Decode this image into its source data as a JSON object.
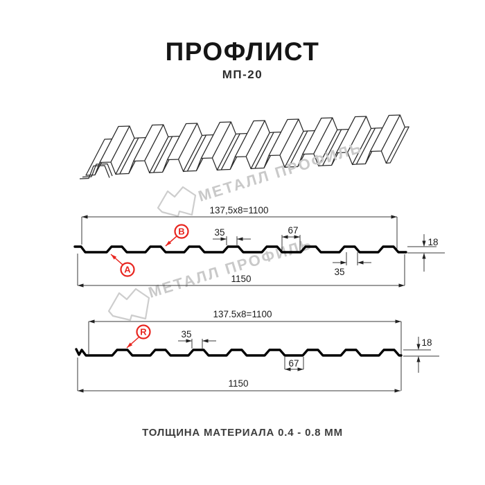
{
  "header": {
    "title": "ПРОФЛИСТ",
    "subtitle": "МП-20"
  },
  "watermark": {
    "brand": "МЕТАЛЛ ПРОФИЛЬ"
  },
  "sections": {
    "profile_a": {
      "width_formula": "137,5x8=1100",
      "crest_width": "35",
      "flat_width": "67",
      "height": "18",
      "crest_width_bottom": "35",
      "total_width": "1150",
      "marker_a": "A",
      "marker_b": "B"
    },
    "profile_r": {
      "width_formula": "137.5x8=1100",
      "crest_width": "35",
      "flat_width": "67",
      "height": "18",
      "total_width": "1150",
      "marker_r": "R"
    }
  },
  "footer": {
    "note": "ТОЛЩИНА МАТЕРИАЛА 0.4 - 0.8 ММ"
  },
  "colors": {
    "accent": "#e8251f",
    "profile_line": "#000000",
    "dim_line": "#3a3a3a",
    "watermark": "#c9c9c9"
  }
}
